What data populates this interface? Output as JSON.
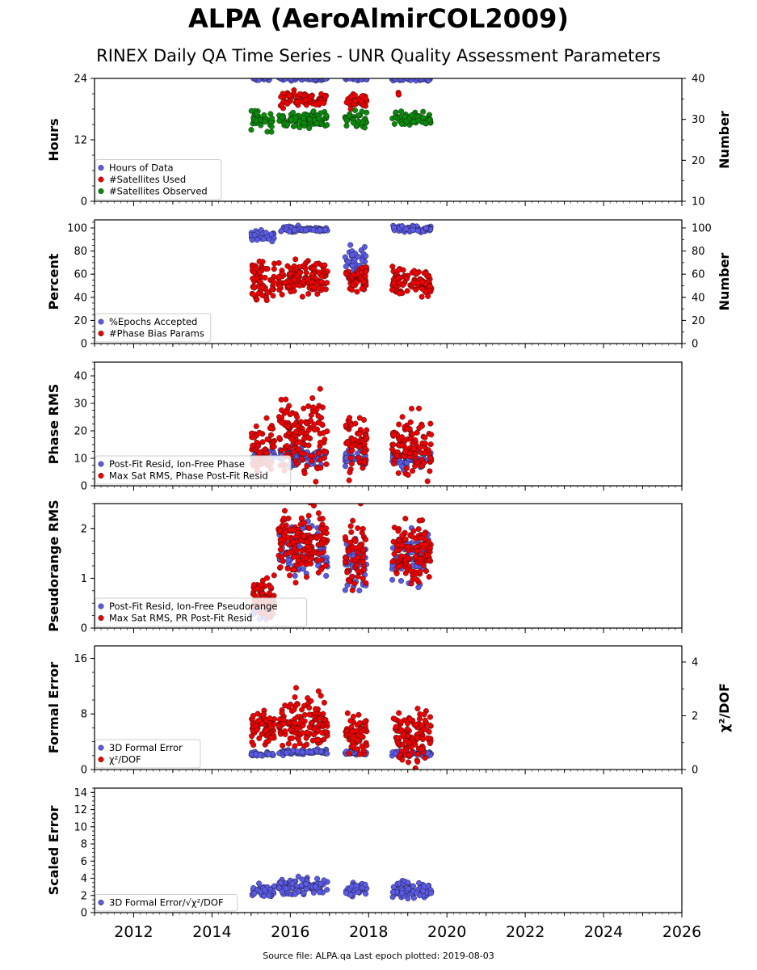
{
  "title": "ALPA (AeroAlmirCOL2009)",
  "subtitle": "RINEX Daily QA Time Series - UNR Quality Assessment Parameters",
  "footer": "Source file: ALPA.qa Last epoch plotted: 2019-08-03",
  "colors": {
    "blue": "#5a5ae6",
    "red": "#ee0000",
    "green": "#0a8a0a"
  },
  "chart_data": [
    {
      "type": "scatter",
      "ylabel": "Hours",
      "ylabel_right": "Number",
      "ylim": [
        0,
        24
      ],
      "ylim_right": [
        10,
        40
      ],
      "yticks": [
        "0",
        "12",
        "24"
      ],
      "yticks_right": [
        "10",
        "20",
        "30",
        "40"
      ],
      "xlim": [
        2011,
        2026
      ],
      "legend": "lower-left",
      "series": [
        {
          "name": "Hours of Data",
          "color": "blue",
          "axis": "left",
          "point_count": 180,
          "segments": [
            [
              2015.0,
              2015.55,
              24,
              0.2
            ],
            [
              2015.7,
              2016.95,
              24,
              0.2
            ],
            [
              2017.4,
              2017.95,
              24,
              0.2
            ],
            [
              2018.6,
              2019.6,
              24,
              0.2
            ]
          ]
        },
        {
          "name": "#Satellites Used",
          "color": "red",
          "axis": "right",
          "point_count": 110,
          "segments": [
            [
              2015.75,
              2016.95,
              35.0,
              1.0
            ],
            [
              2017.4,
              2017.95,
              34.5,
              1.0
            ],
            [
              2018.75,
              2018.78,
              36.0,
              0.2
            ]
          ]
        },
        {
          "name": "#Satellites Observed",
          "color": "green",
          "axis": "right",
          "point_count": 230,
          "segments": [
            [
              2015.0,
              2015.55,
              30.0,
              1.2
            ],
            [
              2015.7,
              2016.95,
              30.0,
              1.0
            ],
            [
              2017.4,
              2017.95,
              30.0,
              1.0
            ],
            [
              2018.6,
              2019.6,
              30.0,
              0.8
            ]
          ]
        }
      ]
    },
    {
      "type": "scatter",
      "ylabel": "Percent",
      "ylabel_right": "Number",
      "ylim": [
        0,
        107
      ],
      "ylim_right": [
        0,
        107
      ],
      "yticks": [
        "0",
        "20",
        "40",
        "60",
        "80",
        "100"
      ],
      "yticks_right": [
        "0",
        "20",
        "40",
        "60",
        "80",
        "100"
      ],
      "xlim": [
        2011,
        2026
      ],
      "legend": "lower-left",
      "series": [
        {
          "name": "%Epochs Accepted",
          "color": "blue",
          "axis": "left",
          "point_count": 210,
          "segments": [
            [
              2015.0,
              2015.6,
              92,
              2.5
            ],
            [
              2015.7,
              2016.95,
              99,
              1.2
            ],
            [
              2017.4,
              2017.95,
              72,
              6
            ],
            [
              2018.6,
              2019.6,
              99,
              1.2
            ]
          ]
        },
        {
          "name": "#Phase Bias Params",
          "color": "red",
          "axis": "right",
          "point_count": 340,
          "segments": [
            [
              2015.0,
              2015.6,
              55,
              9
            ],
            [
              2015.7,
              2016.95,
              57,
              7
            ],
            [
              2017.4,
              2017.95,
              57,
              6
            ],
            [
              2018.6,
              2019.6,
              53,
              6
            ]
          ]
        }
      ]
    },
    {
      "type": "scatter",
      "ylabel": "Phase RMS",
      "ylim": [
        0,
        45
      ],
      "yticks": [
        "0",
        "10",
        "20",
        "30",
        "40"
      ],
      "xlim": [
        2011,
        2026
      ],
      "legend": "lower-left",
      "series": [
        {
          "name": "Post-Fit Resid, Ion-Free Phase",
          "color": "blue",
          "axis": "left",
          "point_count": 220,
          "segments": [
            [
              2015.0,
              2015.6,
              10.5,
              1.5
            ],
            [
              2015.7,
              2016.95,
              10.5,
              1.5
            ],
            [
              2017.4,
              2017.95,
              10,
              1.2
            ],
            [
              2018.6,
              2019.6,
              9.5,
              1.5
            ]
          ]
        },
        {
          "name": "Max Sat RMS, Phase Post-Fit Resid",
          "color": "red",
          "axis": "left",
          "point_count": 380,
          "segments": [
            [
              2015.0,
              2015.6,
              15,
              4
            ],
            [
              2015.7,
              2016.95,
              18,
              7
            ],
            [
              2017.4,
              2017.95,
              15,
              5
            ],
            [
              2018.6,
              2019.6,
              14,
              5
            ]
          ]
        }
      ]
    },
    {
      "type": "scatter",
      "ylabel": "Pseudorange RMS",
      "ylim": [
        0,
        2.5
      ],
      "yticks": [
        "0",
        "1",
        "2"
      ],
      "xlim": [
        2011,
        2026
      ],
      "legend": "lower-left",
      "series": [
        {
          "name": "Post-Fit Resid, Ion-Free Pseudorange",
          "color": "blue",
          "axis": "left",
          "point_count": 220,
          "segments": [
            [
              2015.0,
              2015.6,
              0.45,
              0.12
            ],
            [
              2015.7,
              2016.95,
              1.55,
              0.3
            ],
            [
              2017.4,
              2017.95,
              1.3,
              0.3
            ],
            [
              2018.6,
              2019.6,
              1.45,
              0.25
            ]
          ]
        },
        {
          "name": "Max Sat RMS, PR Post-Fit Resid",
          "color": "red",
          "axis": "left",
          "point_count": 400,
          "segments": [
            [
              2015.0,
              2015.6,
              0.6,
              0.2
            ],
            [
              2015.7,
              2016.95,
              1.7,
              0.3
            ],
            [
              2017.4,
              2017.95,
              1.5,
              0.35
            ],
            [
              2018.6,
              2019.6,
              1.55,
              0.3
            ]
          ]
        }
      ]
    },
    {
      "type": "scatter",
      "ylabel": "Formal Error",
      "ylabel_right": "χ²/DOF",
      "ylim": [
        0,
        17.8
      ],
      "ylim_right": [
        0,
        4.6
      ],
      "yticks": [
        "0",
        "8",
        "16"
      ],
      "yticks_right": [
        "0",
        "2",
        "4"
      ],
      "xlim": [
        2011,
        2026
      ],
      "legend": "lower-left",
      "series": [
        {
          "name": "3D Formal Error",
          "color": "blue",
          "axis": "left",
          "point_count": 220,
          "segments": [
            [
              2015.0,
              2015.6,
              2.2,
              0.15
            ],
            [
              2015.7,
              2016.95,
              2.5,
              0.2
            ],
            [
              2017.4,
              2017.95,
              2.4,
              0.15
            ],
            [
              2018.6,
              2019.6,
              2.3,
              0.15
            ]
          ]
        },
        {
          "name": "χ²/DOF",
          "color": "red",
          "axis": "right",
          "point_count": 380,
          "segments": [
            [
              2015.0,
              2015.6,
              1.55,
              0.3
            ],
            [
              2015.7,
              2016.95,
              1.7,
              0.45
            ],
            [
              2017.4,
              2017.95,
              1.4,
              0.35
            ],
            [
              2018.6,
              2019.6,
              1.25,
              0.45
            ]
          ]
        }
      ]
    },
    {
      "type": "scatter",
      "ylabel": "Scaled Error",
      "ylim": [
        0,
        14.5
      ],
      "yticks": [
        "0",
        "2",
        "4",
        "6",
        "8",
        "10",
        "12",
        "14"
      ],
      "xlim": [
        2011,
        2026
      ],
      "xticks": [
        "2012",
        "2014",
        "2016",
        "2018",
        "2020",
        "2022",
        "2024",
        "2026"
      ],
      "legend": "lower-left",
      "series": [
        {
          "name": "3D Formal Error/√χ²/DOF",
          "color": "blue",
          "axis": "left",
          "point_count": 260,
          "segments": [
            [
              2015.0,
              2015.6,
              2.6,
              0.4
            ],
            [
              2015.7,
              2016.95,
              3.0,
              0.5
            ],
            [
              2017.4,
              2017.95,
              2.8,
              0.4
            ],
            [
              2018.6,
              2019.6,
              2.6,
              0.45
            ]
          ]
        }
      ]
    }
  ]
}
